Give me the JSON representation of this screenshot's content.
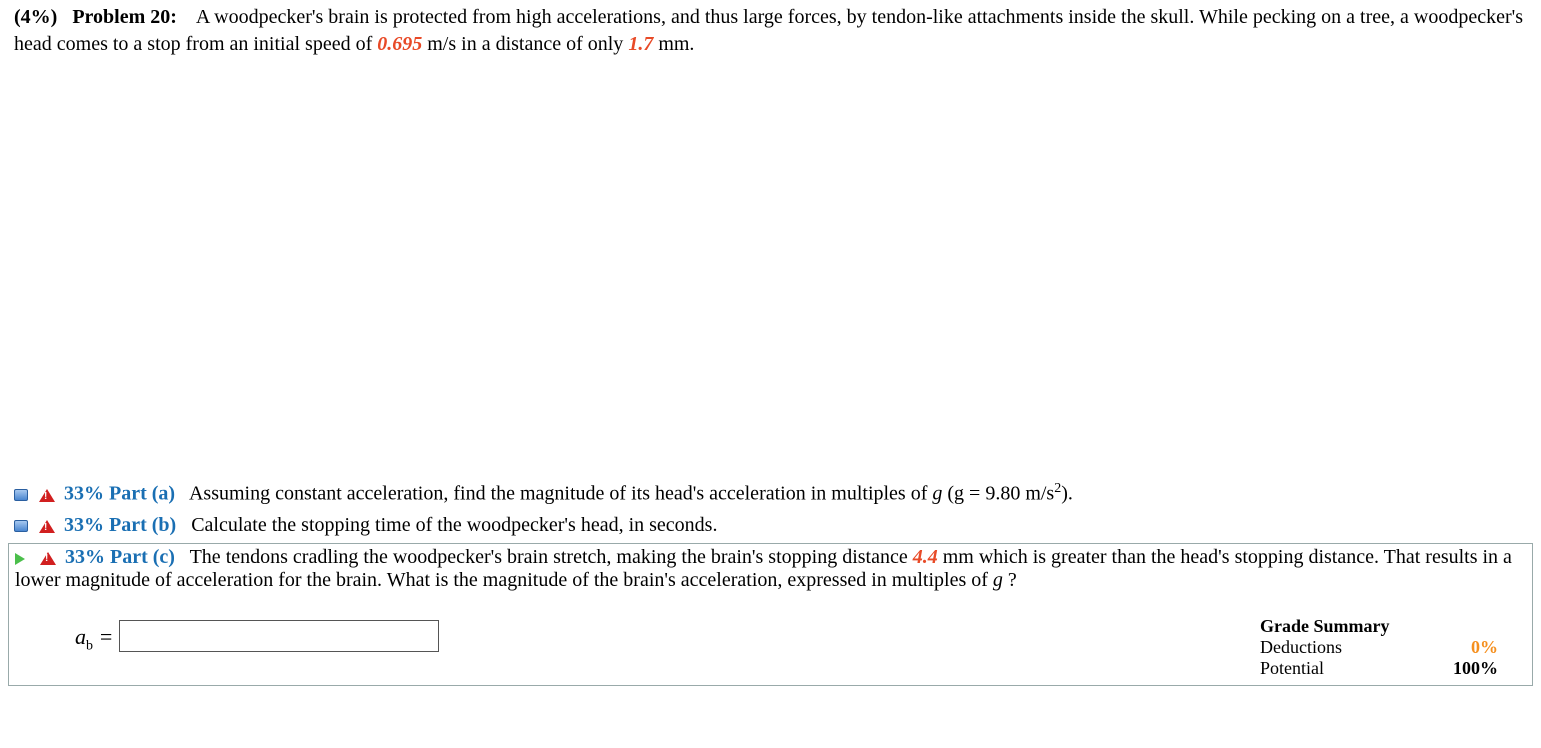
{
  "problem": {
    "weight": "(4%)",
    "label": "Problem 20:",
    "text_1": "A woodpecker's brain is protected from high accelerations, and thus large forces, by tendon-like attachments inside the skull. While pecking on a tree, a woodpecker's head comes to a stop from an initial speed of ",
    "val_speed": "0.695",
    "text_2": " m/s in a distance of only ",
    "val_dist": "1.7",
    "text_3": " mm."
  },
  "parts": {
    "a": {
      "pct": "33%",
      "label": "Part (a)",
      "text": "Assuming constant acceleration, find the magnitude of its head's acceleration in multiples of ",
      "g_open": "g (g = 9.80 m/s",
      "g_close": ")."
    },
    "b": {
      "pct": "33%",
      "label": "Part (b)",
      "text": "Calculate the stopping time of the woodpecker's head, in seconds."
    },
    "c": {
      "pct": "33%",
      "label": "Part (c)",
      "text_1": "The tendons cradling the woodpecker's brain stretch, making the brain's stopping distance ",
      "val": "4.4",
      "text_2": " mm which is greater than the head's stopping distance. That results in a lower magnitude of acceleration for the brain. What is the magnitude of the brain's acceleration, expressed in multiples of ",
      "g": "g",
      "q": "?"
    }
  },
  "answer": {
    "var": "a",
    "sub": "b",
    "eq": " = ",
    "value": ""
  },
  "grade": {
    "title": "Grade Summary",
    "ded_label": "Deductions",
    "ded_val": "0%",
    "pot_label": "Potential",
    "pot_val": "100%"
  }
}
